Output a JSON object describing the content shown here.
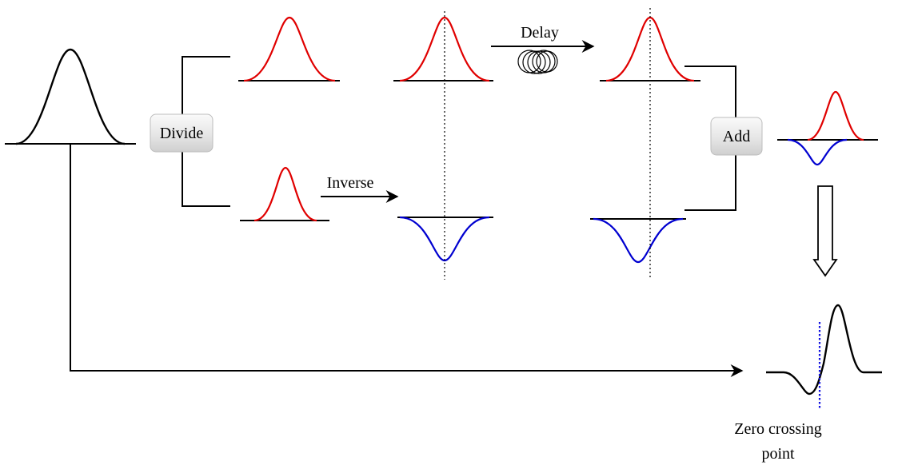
{
  "nodes": {
    "divide": "Divide",
    "add": "Add"
  },
  "edge_labels": {
    "inverse": "Inverse",
    "delay": "Delay"
  },
  "annotation": {
    "line1": "Zero crossing",
    "line2": "point"
  },
  "colors": {
    "original_pulse": "#000000",
    "positive_pulse": "#e00000",
    "inverted_pulse": "#0000d0",
    "zero_marker": "#1010e0"
  },
  "icons": {
    "delay_element": "fiber-coil-icon",
    "down_arrow": "hollow-down-arrow-icon"
  }
}
